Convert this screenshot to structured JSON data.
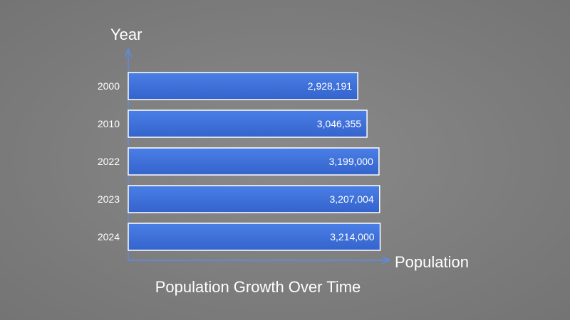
{
  "chart_data": {
    "type": "bar",
    "orientation": "horizontal",
    "title": "Population Growth Over Time",
    "xlabel": "Population",
    "ylabel": "Year",
    "categories": [
      "2000",
      "2010",
      "2022",
      "2023",
      "2024"
    ],
    "values": [
      2928191,
      3046355,
      3199000,
      3207004,
      3214000
    ],
    "value_labels": [
      "2,928,191",
      "3,046,355",
      "3,199,000",
      "3,207,004",
      "3,214,000"
    ],
    "xlim": [
      0,
      4000000
    ],
    "grid": false,
    "colors": {
      "bar": "#3d6fd8",
      "bar_border": "#ffffff",
      "axis": "#5b8ce8",
      "text": "#ffffff"
    }
  }
}
